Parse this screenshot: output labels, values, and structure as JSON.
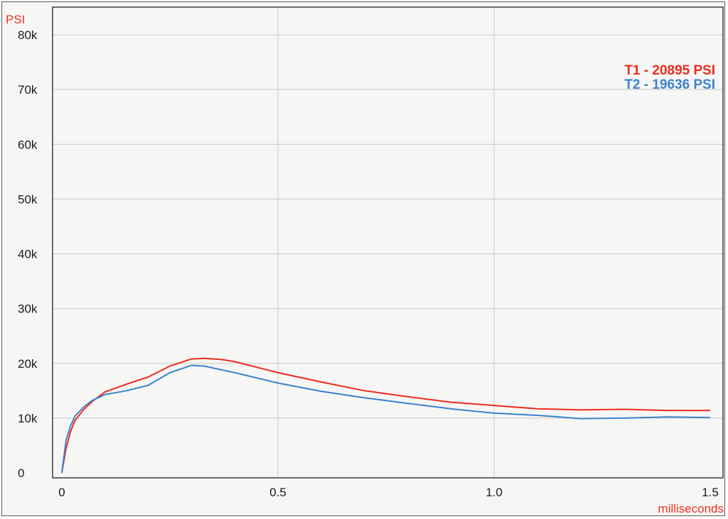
{
  "chart_data": {
    "type": "line",
    "ylabel": "PSI",
    "xlabel": "milliseconds",
    "xlim": [
      0,
      1.5
    ],
    "ylim": [
      0,
      80000
    ],
    "x_ticks": [
      {
        "value": 0,
        "label": "0"
      },
      {
        "value": 0.5,
        "label": "0.5"
      },
      {
        "value": 1.0,
        "label": "1.0"
      },
      {
        "value": 1.5,
        "label": "1.5"
      }
    ],
    "y_ticks": [
      {
        "value": 0,
        "label": "0"
      },
      {
        "value": 10000,
        "label": "10k"
      },
      {
        "value": 20000,
        "label": "20k"
      },
      {
        "value": 30000,
        "label": "30k"
      },
      {
        "value": 40000,
        "label": "40k"
      },
      {
        "value": 50000,
        "label": "50k"
      },
      {
        "value": 60000,
        "label": "60k"
      },
      {
        "value": 70000,
        "label": "70k"
      },
      {
        "value": 80000,
        "label": "80k"
      }
    ],
    "grid": true,
    "legend_position": "top-right",
    "colors": {
      "ylabel": "#ee3322",
      "xlabel": "#ee3322",
      "grid": "#c8c8c8",
      "frame": "#3a3a3a"
    },
    "series": [
      {
        "name": "T1",
        "legend": "T1 -  20895 PSI",
        "color": "#ee2b1f",
        "x": [
          0,
          0.01,
          0.02,
          0.03,
          0.05,
          0.07,
          0.1,
          0.15,
          0.2,
          0.25,
          0.3,
          0.33,
          0.37,
          0.4,
          0.5,
          0.6,
          0.7,
          0.8,
          0.9,
          1.0,
          1.1,
          1.2,
          1.3,
          1.4,
          1.5
        ],
        "y": [
          0,
          4500,
          7500,
          9500,
          11500,
          13000,
          14800,
          16200,
          17500,
          19500,
          20800,
          20895,
          20700,
          20300,
          18300,
          16600,
          15000,
          13900,
          12900,
          12300,
          11700,
          11500,
          11600,
          11400,
          11400
        ]
      },
      {
        "name": "T2",
        "legend": "T2 -  19636 PSI",
        "color": "#3b82d0",
        "x": [
          0,
          0.01,
          0.02,
          0.03,
          0.05,
          0.07,
          0.1,
          0.15,
          0.2,
          0.25,
          0.3,
          0.33,
          0.37,
          0.4,
          0.5,
          0.6,
          0.7,
          0.8,
          0.9,
          1.0,
          1.1,
          1.2,
          1.3,
          1.4,
          1.5
        ],
        "y": [
          0,
          6000,
          8500,
          10300,
          12000,
          13200,
          14300,
          15000,
          16000,
          18300,
          19636,
          19500,
          18800,
          18300,
          16400,
          14900,
          13700,
          12700,
          11700,
          10900,
          10500,
          9900,
          10000,
          10200,
          10100
        ]
      }
    ]
  }
}
